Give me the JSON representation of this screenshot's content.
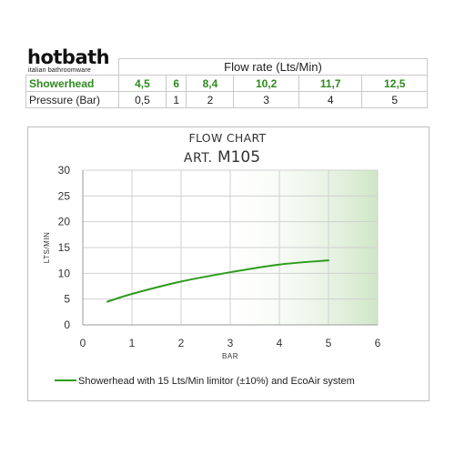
{
  "logo": {
    "word": "hotbath",
    "tagline": "italian bathroomware"
  },
  "table": {
    "header": "Flow rate (Lts/Min)",
    "rows": [
      {
        "label": "Showerhead",
        "cells": [
          "4,5",
          "6",
          "8,4",
          "10,2",
          "11,7",
          "12,5"
        ]
      },
      {
        "label": "Pressure (Bar)",
        "cells": [
          "0,5",
          "1",
          "2",
          "3",
          "4",
          "5"
        ]
      }
    ]
  },
  "chart_data": {
    "type": "line",
    "title": "FLOW CHART",
    "subtitle_prefix": "ART.",
    "subtitle": "M105",
    "xlabel": "BAR",
    "ylabel": "LTS/MIN",
    "xlim": [
      0,
      6
    ],
    "ylim": [
      0,
      30
    ],
    "xticks": [
      "0",
      "1",
      "2",
      "3",
      "4",
      "5",
      "6"
    ],
    "yticks": [
      "0",
      "5",
      "10",
      "15",
      "20",
      "25",
      "30"
    ],
    "grid": true,
    "legend_position": "bottom",
    "series": [
      {
        "name": "Showerhead with 15 Lts/Min limitor (±10%) and EcoAir system",
        "color": "#2e9a1e",
        "x": [
          0.5,
          1,
          2,
          3,
          4,
          5
        ],
        "y": [
          4.5,
          6,
          8.4,
          10.2,
          11.7,
          12.5
        ]
      }
    ]
  }
}
